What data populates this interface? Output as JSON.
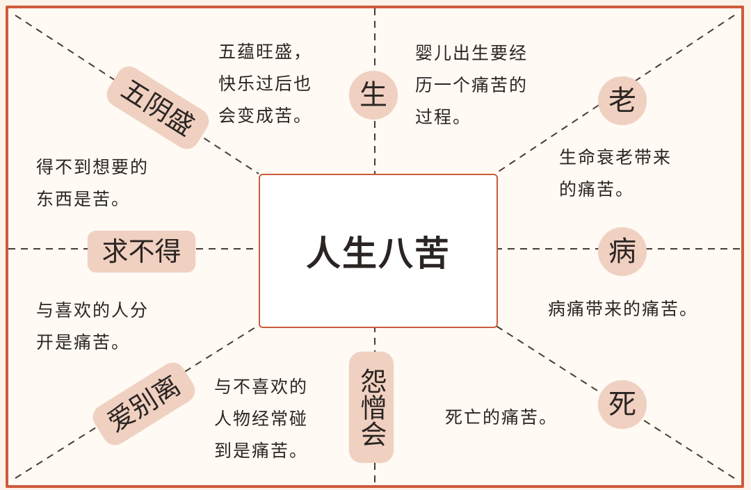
{
  "title": "人生八苦",
  "labels": {
    "sheng": "生",
    "lao": "老",
    "bing": "病",
    "si": "死",
    "wuyinsheng": "五阴盛",
    "qiubude": "求不得",
    "aibieli": "爱别离",
    "yuanzenghui": "怨憎会"
  },
  "descriptions": {
    "wuyinsheng": [
      "五蕴旺盛，",
      "快乐过后也",
      "会变成苦。"
    ],
    "sheng": [
      "婴儿出生要经",
      "历一个痛苦的",
      "过程。"
    ],
    "lao": [
      "生命衰老带来",
      "的痛苦。"
    ],
    "qiubude": [
      "得不到想要的",
      "东西是苦。"
    ],
    "bing": [
      "病痛带来的痛苦。"
    ],
    "aibieli": [
      "与喜欢的人分",
      "开是痛苦。"
    ],
    "yuanzenghui": [
      "与不喜欢的",
      "人物经常碰",
      "到是痛苦。"
    ],
    "si": [
      "死亡的痛苦。"
    ]
  },
  "colors": {
    "frame": "#cf5a3a",
    "tag_bg": "#f0d0c0",
    "text": "#2a2523"
  }
}
